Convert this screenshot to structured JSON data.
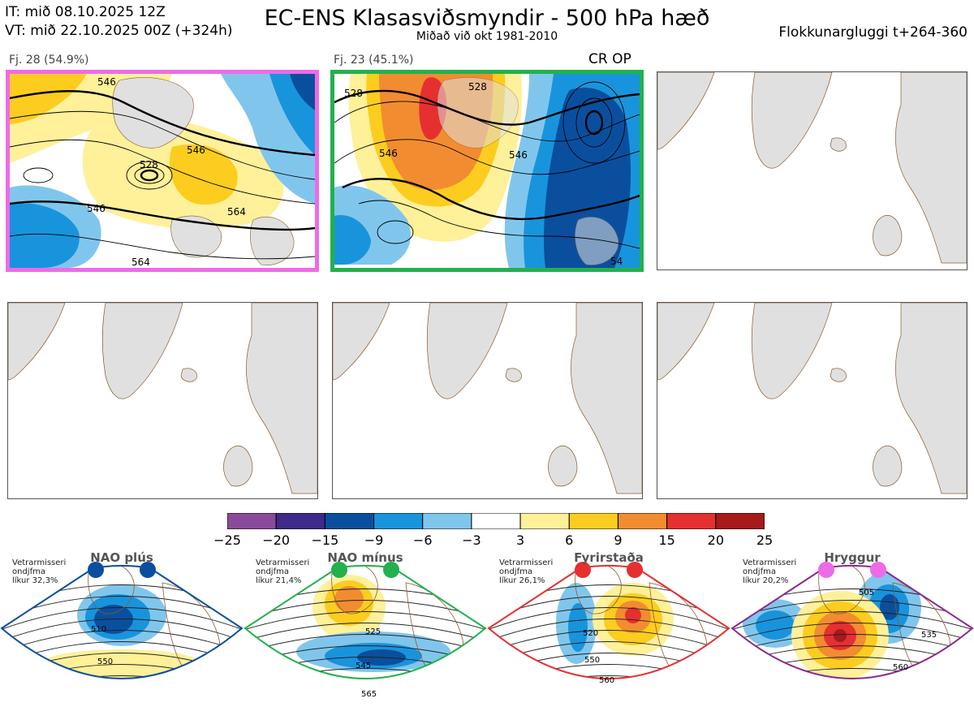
{
  "header": {
    "it_line": "IT: mið 08.10.2025 12Z",
    "vt_line": "VT: mið 22.10.2025 00Z  (+324h)",
    "title": "EC-ENS Klasasviðsmyndir - 500 hPa hæð",
    "subtitle": "Miðað við okt 1981-2010",
    "window": "Flokkunargluggi t+264-360"
  },
  "clusters": [
    {
      "label": "Fj. 28 (54.9%)",
      "border_color": "#ee6be8",
      "contours": [
        "546",
        "528",
        "546",
        "564",
        "564",
        "546"
      ]
    },
    {
      "label": "Fj. 23 (45.1%)",
      "border_color": "#22b14c",
      "op_tag": "CR OP",
      "contours": [
        "528",
        "528",
        "546",
        "546",
        "54"
      ]
    }
  ],
  "colors": {
    "land": "#e0e0e0",
    "coast": "#8b5a2b"
  },
  "chart_data": {
    "type": "heatmap",
    "colorbar": {
      "ticks": [
        "−25",
        "−20",
        "−15",
        "−9",
        "−6",
        "−3",
        "3",
        "6",
        "9",
        "15",
        "20",
        "25"
      ],
      "colors": [
        "#8a4a9a",
        "#3e2a8a",
        "#0a4f9e",
        "#1894dc",
        "#80c6ec",
        "#ffffff",
        "#fff09a",
        "#fccd1e",
        "#f28c30",
        "#e5302f",
        "#a61a1a"
      ]
    }
  },
  "regimes": [
    {
      "title": "NAO plús",
      "note": [
        "Vetrarmisseri",
        "ondjfma",
        "líkur 32,3%"
      ],
      "dot_color": "#0a4f9e",
      "border": "#0a4f9e",
      "contours": [
        "510",
        "550"
      ]
    },
    {
      "title": "NAO mínus",
      "note": [
        "Vetrarmisseri",
        "ondjfma",
        "líkur 21,4%"
      ],
      "dot_color": "#22b14c",
      "border": "#22b14c",
      "contours": [
        "525",
        "545",
        "565"
      ]
    },
    {
      "title": "Fyrirstaða",
      "note": [
        "Vetrarmisseri",
        "ondjfma",
        "líkur 26,1%"
      ],
      "dot_color": "#e5302f",
      "border": "#e5302f",
      "contours": [
        "520",
        "550",
        "560"
      ]
    },
    {
      "title": "Hryggur",
      "note": [
        "Vetrarmisseri",
        "ondjfma",
        "líkur 20,2%"
      ],
      "dot_color": "#ee6be8",
      "border": "#8b2a8b",
      "contours": [
        "505",
        "535",
        "560"
      ]
    }
  ]
}
